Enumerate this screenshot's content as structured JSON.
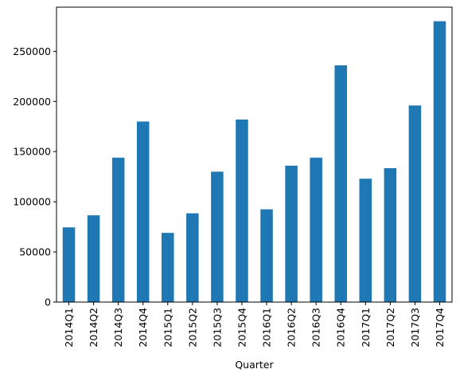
{
  "chart_data": {
    "type": "bar",
    "xlabel": "Quarter",
    "ylabel": "",
    "title": "",
    "categories": [
      "2014Q1",
      "2014Q2",
      "2014Q3",
      "2014Q4",
      "2015Q1",
      "2015Q2",
      "2015Q3",
      "2015Q4",
      "2016Q1",
      "2016Q2",
      "2016Q3",
      "2016Q4",
      "2017Q1",
      "2017Q2",
      "2017Q3",
      "2017Q4"
    ],
    "values": [
      74500,
      86500,
      144000,
      180000,
      69000,
      88500,
      130000,
      182000,
      92500,
      136000,
      144000,
      236000,
      123000,
      133500,
      196000,
      280000
    ],
    "ylim": [
      0,
      294000
    ],
    "yticks": [
      0,
      50000,
      100000,
      150000,
      200000,
      250000
    ],
    "ytick_labels": [
      "0",
      "50000",
      "100000",
      "150000",
      "200000",
      "250000"
    ],
    "bar_color": "#1f77b4",
    "grid": false,
    "legend": false
  }
}
